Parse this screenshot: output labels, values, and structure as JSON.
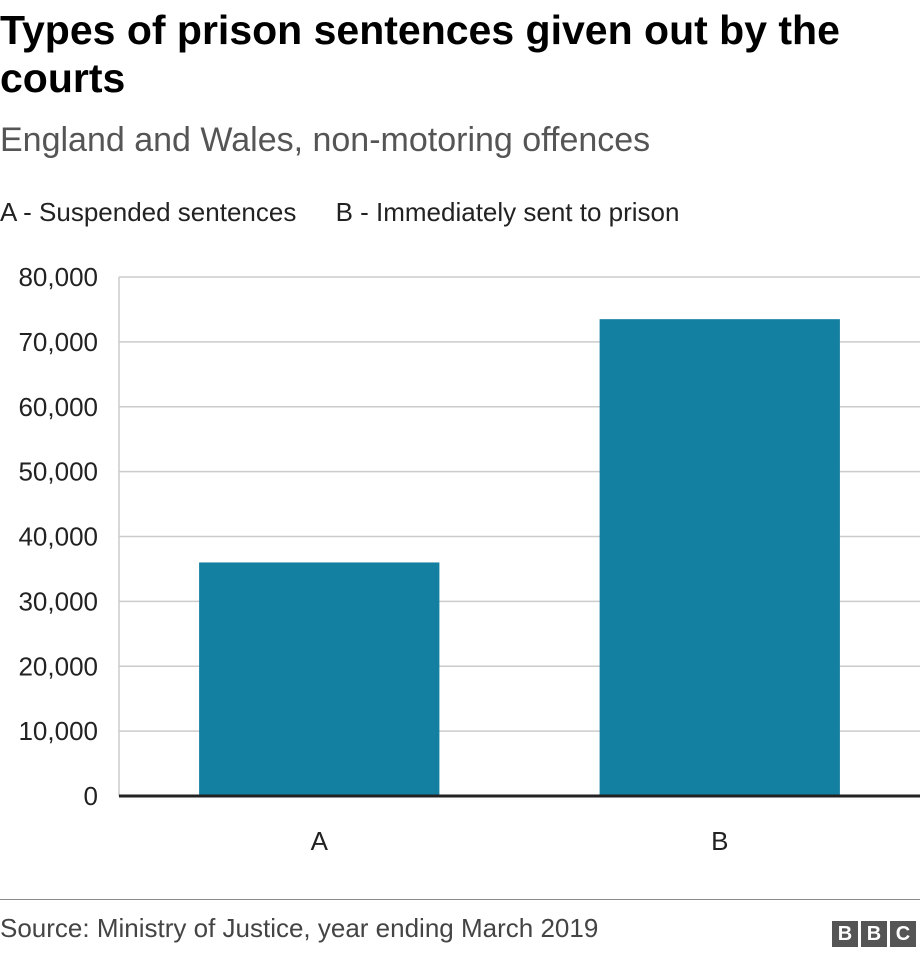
{
  "chart_data": {
    "type": "bar",
    "title": "Types of prison sentences given out by the courts",
    "subtitle": "England and Wales, non-motoring offences",
    "key": [
      "A - Suspended sentences",
      "B - Immediately sent to prison"
    ],
    "categories": [
      "A",
      "B"
    ],
    "values": [
      36000,
      73500
    ],
    "ylim": [
      0,
      80000
    ],
    "yticks": [
      0,
      10000,
      20000,
      30000,
      40000,
      50000,
      60000,
      70000,
      80000
    ],
    "ytick_labels": [
      "0",
      "10,000",
      "20,000",
      "30,000",
      "40,000",
      "50,000",
      "60,000",
      "70,000",
      "80,000"
    ],
    "grid": true,
    "bar_color": "#1380a1",
    "grid_color": "#cbcbcb",
    "baseline_color": "#222222"
  },
  "footer": {
    "source": "Source: Ministry of Justice, year ending March 2019",
    "logo_letters": [
      "B",
      "B",
      "C"
    ],
    "logo_color": "#555555"
  }
}
